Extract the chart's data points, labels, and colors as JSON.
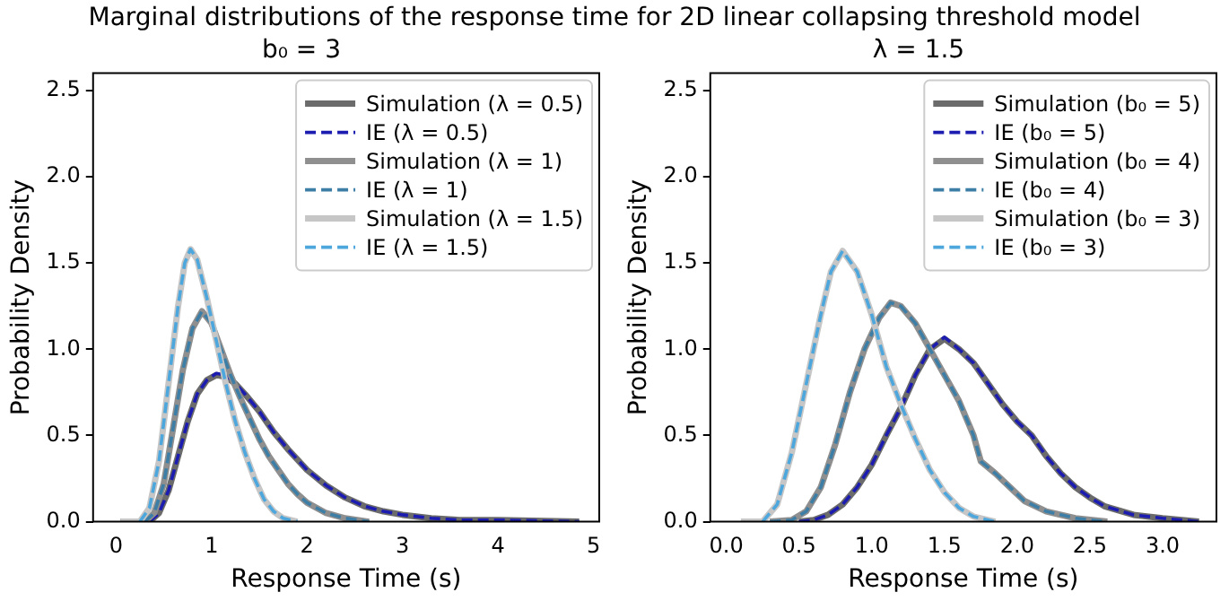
{
  "chart_data": [
    {
      "type": "line",
      "title": "Marginal distributions of the response time for 2D linear collapsing threshold model",
      "subtitle": "b₀ = 3",
      "xlabel": "Response Time (s)",
      "ylabel": "Probability Density",
      "legend": "top right",
      "grid": false,
      "marker": "none",
      "xlim": [
        -0.24,
        5.06
      ],
      "ylim": [
        0,
        2.6
      ],
      "xticks": [
        0,
        1,
        2,
        3,
        4,
        5
      ],
      "yticks": [
        {
          "value": 0,
          "label": "0.0"
        },
        {
          "value": 0.5,
          "label": "0.5"
        },
        {
          "value": 1,
          "label": "1.0"
        },
        {
          "value": 1.5,
          "label": "1.5"
        },
        {
          "value": 2,
          "label": "2.0"
        },
        {
          "value": 2.5,
          "label": "2.5"
        }
      ],
      "series": [
        {
          "name": "Simulation (λ = 0.5)",
          "color": "#6b6b6b",
          "line_style": "solid",
          "x": [
            0.05,
            0.35,
            0.45,
            0.55,
            0.65,
            0.75,
            0.85,
            0.95,
            1.05,
            1.15,
            1.25,
            1.35,
            1.5,
            1.65,
            1.8,
            2.0,
            2.2,
            2.4,
            2.6,
            2.8,
            3.0,
            3.3,
            3.6,
            4.0,
            4.85
          ],
          "values": [
            0,
            0,
            0.05,
            0.18,
            0.38,
            0.58,
            0.74,
            0.82,
            0.85,
            0.84,
            0.8,
            0.74,
            0.64,
            0.52,
            0.42,
            0.3,
            0.21,
            0.14,
            0.09,
            0.06,
            0.04,
            0.02,
            0.01,
            0.01,
            0
          ]
        },
        {
          "name": "IE (λ = 0.5)",
          "color": "#1c1cb0",
          "line_style": "dashed",
          "x": [
            0.35,
            0.45,
            0.55,
            0.65,
            0.75,
            0.85,
            0.95,
            1.05,
            1.15,
            1.25,
            1.35,
            1.5,
            1.65,
            1.8,
            2.0,
            2.2,
            2.4,
            2.6,
            2.8,
            3.0,
            3.3,
            3.6,
            4.0,
            4.85
          ],
          "values": [
            0,
            0.05,
            0.18,
            0.38,
            0.58,
            0.74,
            0.82,
            0.86,
            0.85,
            0.8,
            0.74,
            0.64,
            0.52,
            0.42,
            0.3,
            0.21,
            0.14,
            0.09,
            0.06,
            0.04,
            0.02,
            0.01,
            0.01,
            0
          ]
        },
        {
          "name": "Simulation (λ = 1)",
          "color": "#8f8f8f",
          "line_style": "solid",
          "x": [
            0.05,
            0.3,
            0.4,
            0.5,
            0.6,
            0.7,
            0.8,
            0.9,
            1.0,
            1.1,
            1.2,
            1.3,
            1.4,
            1.5,
            1.6,
            1.7,
            1.8,
            1.9,
            2.0,
            2.2,
            2.4,
            2.65
          ],
          "values": [
            0,
            0,
            0.05,
            0.22,
            0.55,
            0.88,
            1.12,
            1.22,
            1.15,
            1.0,
            0.85,
            0.72,
            0.6,
            0.48,
            0.38,
            0.3,
            0.22,
            0.16,
            0.11,
            0.05,
            0.02,
            0
          ]
        },
        {
          "name": "IE (λ = 1)",
          "color": "#3d7ea6",
          "line_style": "dashed",
          "x": [
            0.3,
            0.4,
            0.5,
            0.6,
            0.7,
            0.8,
            0.9,
            1.0,
            1.1,
            1.2,
            1.3,
            1.4,
            1.5,
            1.6,
            1.7,
            1.8,
            1.9,
            2.0,
            2.2,
            2.4,
            2.65
          ],
          "values": [
            0,
            0.05,
            0.22,
            0.55,
            0.88,
            1.12,
            1.22,
            1.15,
            1.0,
            0.85,
            0.72,
            0.6,
            0.48,
            0.38,
            0.3,
            0.22,
            0.16,
            0.11,
            0.05,
            0.02,
            0
          ]
        },
        {
          "name": "Simulation (λ = 1.5)",
          "color": "#c6c6c6",
          "line_style": "solid",
          "x": [
            0.05,
            0.25,
            0.35,
            0.45,
            0.55,
            0.65,
            0.72,
            0.78,
            0.85,
            0.95,
            1.05,
            1.15,
            1.25,
            1.35,
            1.45,
            1.55,
            1.65,
            1.75,
            1.9
          ],
          "values": [
            0,
            0,
            0.08,
            0.35,
            0.8,
            1.25,
            1.5,
            1.58,
            1.52,
            1.3,
            1.05,
            0.8,
            0.58,
            0.4,
            0.25,
            0.13,
            0.06,
            0.02,
            0
          ]
        },
        {
          "name": "IE (λ = 1.5)",
          "color": "#4da6dc",
          "line_style": "dashed",
          "x": [
            0.25,
            0.35,
            0.45,
            0.55,
            0.65,
            0.72,
            0.78,
            0.85,
            0.95,
            1.05,
            1.15,
            1.25,
            1.35,
            1.45,
            1.55,
            1.65,
            1.75,
            1.9
          ],
          "values": [
            0,
            0.08,
            0.35,
            0.8,
            1.25,
            1.5,
            1.58,
            1.52,
            1.3,
            1.05,
            0.8,
            0.58,
            0.4,
            0.25,
            0.13,
            0.06,
            0.02,
            0
          ]
        }
      ]
    },
    {
      "type": "line",
      "subtitle": "λ = 1.5",
      "xlabel": "Response Time (s)",
      "ylabel": "Probability Density",
      "legend": "top right",
      "grid": false,
      "marker": "none",
      "xlim": [
        -0.11,
        3.37
      ],
      "ylim": [
        0,
        2.6
      ],
      "xticks": [
        {
          "value": 0,
          "label": "0.0"
        },
        {
          "value": 0.5,
          "label": "0.5"
        },
        {
          "value": 1,
          "label": "1.0"
        },
        {
          "value": 1.5,
          "label": "1.5"
        },
        {
          "value": 2,
          "label": "2.0"
        },
        {
          "value": 2.5,
          "label": "2.5"
        },
        {
          "value": 3,
          "label": "3.0"
        }
      ],
      "yticks": [
        {
          "value": 0,
          "label": "0.0"
        },
        {
          "value": 0.5,
          "label": "0.5"
        },
        {
          "value": 1,
          "label": "1.0"
        },
        {
          "value": 1.5,
          "label": "1.5"
        },
        {
          "value": 2,
          "label": "2.0"
        },
        {
          "value": 2.5,
          "label": "2.5"
        }
      ],
      "series": [
        {
          "name": "Simulation (b₀ = 5)",
          "color": "#6b6b6b",
          "line_style": "solid",
          "x": [
            0.5,
            0.6,
            0.7,
            0.8,
            0.9,
            1.0,
            1.1,
            1.2,
            1.3,
            1.4,
            1.5,
            1.6,
            1.7,
            1.8,
            1.9,
            2.0,
            2.1,
            2.2,
            2.3,
            2.4,
            2.5,
            2.6,
            2.8,
            3.0,
            3.25
          ],
          "values": [
            0,
            0.01,
            0.04,
            0.1,
            0.2,
            0.33,
            0.5,
            0.66,
            0.85,
            1.0,
            1.06,
            1.0,
            0.92,
            0.8,
            0.68,
            0.58,
            0.5,
            0.38,
            0.28,
            0.2,
            0.14,
            0.09,
            0.04,
            0.02,
            0
          ]
        },
        {
          "name": "IE (b₀ = 5)",
          "color": "#1c1cb0",
          "line_style": "dashed",
          "x": [
            0.5,
            0.6,
            0.7,
            0.8,
            0.9,
            1.0,
            1.1,
            1.2,
            1.3,
            1.4,
            1.5,
            1.6,
            1.7,
            1.8,
            1.9,
            2.0,
            2.1,
            2.2,
            2.3,
            2.4,
            2.5,
            2.6,
            2.8,
            3.0,
            3.25
          ],
          "values": [
            0,
            0.01,
            0.04,
            0.1,
            0.2,
            0.33,
            0.5,
            0.66,
            0.85,
            1.0,
            1.07,
            1.0,
            0.92,
            0.8,
            0.68,
            0.58,
            0.5,
            0.38,
            0.28,
            0.2,
            0.14,
            0.09,
            0.04,
            0.02,
            0
          ]
        },
        {
          "name": "Simulation (b₀ = 4)",
          "color": "#8f8f8f",
          "line_style": "solid",
          "x": [
            0.3,
            0.45,
            0.55,
            0.65,
            0.75,
            0.85,
            0.95,
            1.05,
            1.13,
            1.2,
            1.3,
            1.4,
            1.5,
            1.6,
            1.7,
            1.75,
            1.85,
            1.95,
            2.05,
            2.2,
            2.4,
            2.62
          ],
          "values": [
            0,
            0.01,
            0.06,
            0.2,
            0.45,
            0.75,
            1.0,
            1.18,
            1.27,
            1.25,
            1.15,
            1.0,
            0.85,
            0.7,
            0.5,
            0.35,
            0.28,
            0.2,
            0.12,
            0.06,
            0.02,
            0
          ]
        },
        {
          "name": "IE (b₀ = 4)",
          "color": "#3d7ea6",
          "line_style": "dashed",
          "x": [
            0.3,
            0.45,
            0.55,
            0.65,
            0.75,
            0.85,
            0.95,
            1.05,
            1.13,
            1.2,
            1.3,
            1.4,
            1.5,
            1.6,
            1.7,
            1.75,
            1.85,
            1.95,
            2.05,
            2.2,
            2.4,
            2.62
          ],
          "values": [
            0,
            0.01,
            0.06,
            0.2,
            0.45,
            0.75,
            1.0,
            1.18,
            1.27,
            1.25,
            1.15,
            1.0,
            0.85,
            0.7,
            0.5,
            0.35,
            0.28,
            0.2,
            0.12,
            0.06,
            0.02,
            0
          ]
        },
        {
          "name": "Simulation (b₀ = 3)",
          "color": "#c6c6c6",
          "line_style": "solid",
          "x": [
            0.1,
            0.25,
            0.35,
            0.45,
            0.55,
            0.65,
            0.72,
            0.8,
            0.9,
            1.0,
            1.1,
            1.2,
            1.3,
            1.4,
            1.5,
            1.6,
            1.7,
            1.85
          ],
          "values": [
            0,
            0,
            0.1,
            0.4,
            0.8,
            1.2,
            1.45,
            1.57,
            1.45,
            1.2,
            0.9,
            0.68,
            0.48,
            0.3,
            0.17,
            0.08,
            0.03,
            0
          ]
        },
        {
          "name": "IE (b₀ = 3)",
          "color": "#4da6dc",
          "line_style": "dashed",
          "x": [
            0.25,
            0.35,
            0.45,
            0.55,
            0.65,
            0.72,
            0.8,
            0.9,
            1.0,
            1.1,
            1.2,
            1.3,
            1.4,
            1.5,
            1.6,
            1.7,
            1.85
          ],
          "values": [
            0,
            0.1,
            0.4,
            0.8,
            1.2,
            1.45,
            1.57,
            1.45,
            1.2,
            0.9,
            0.68,
            0.48,
            0.3,
            0.17,
            0.08,
            0.03,
            0
          ]
        }
      ]
    }
  ]
}
